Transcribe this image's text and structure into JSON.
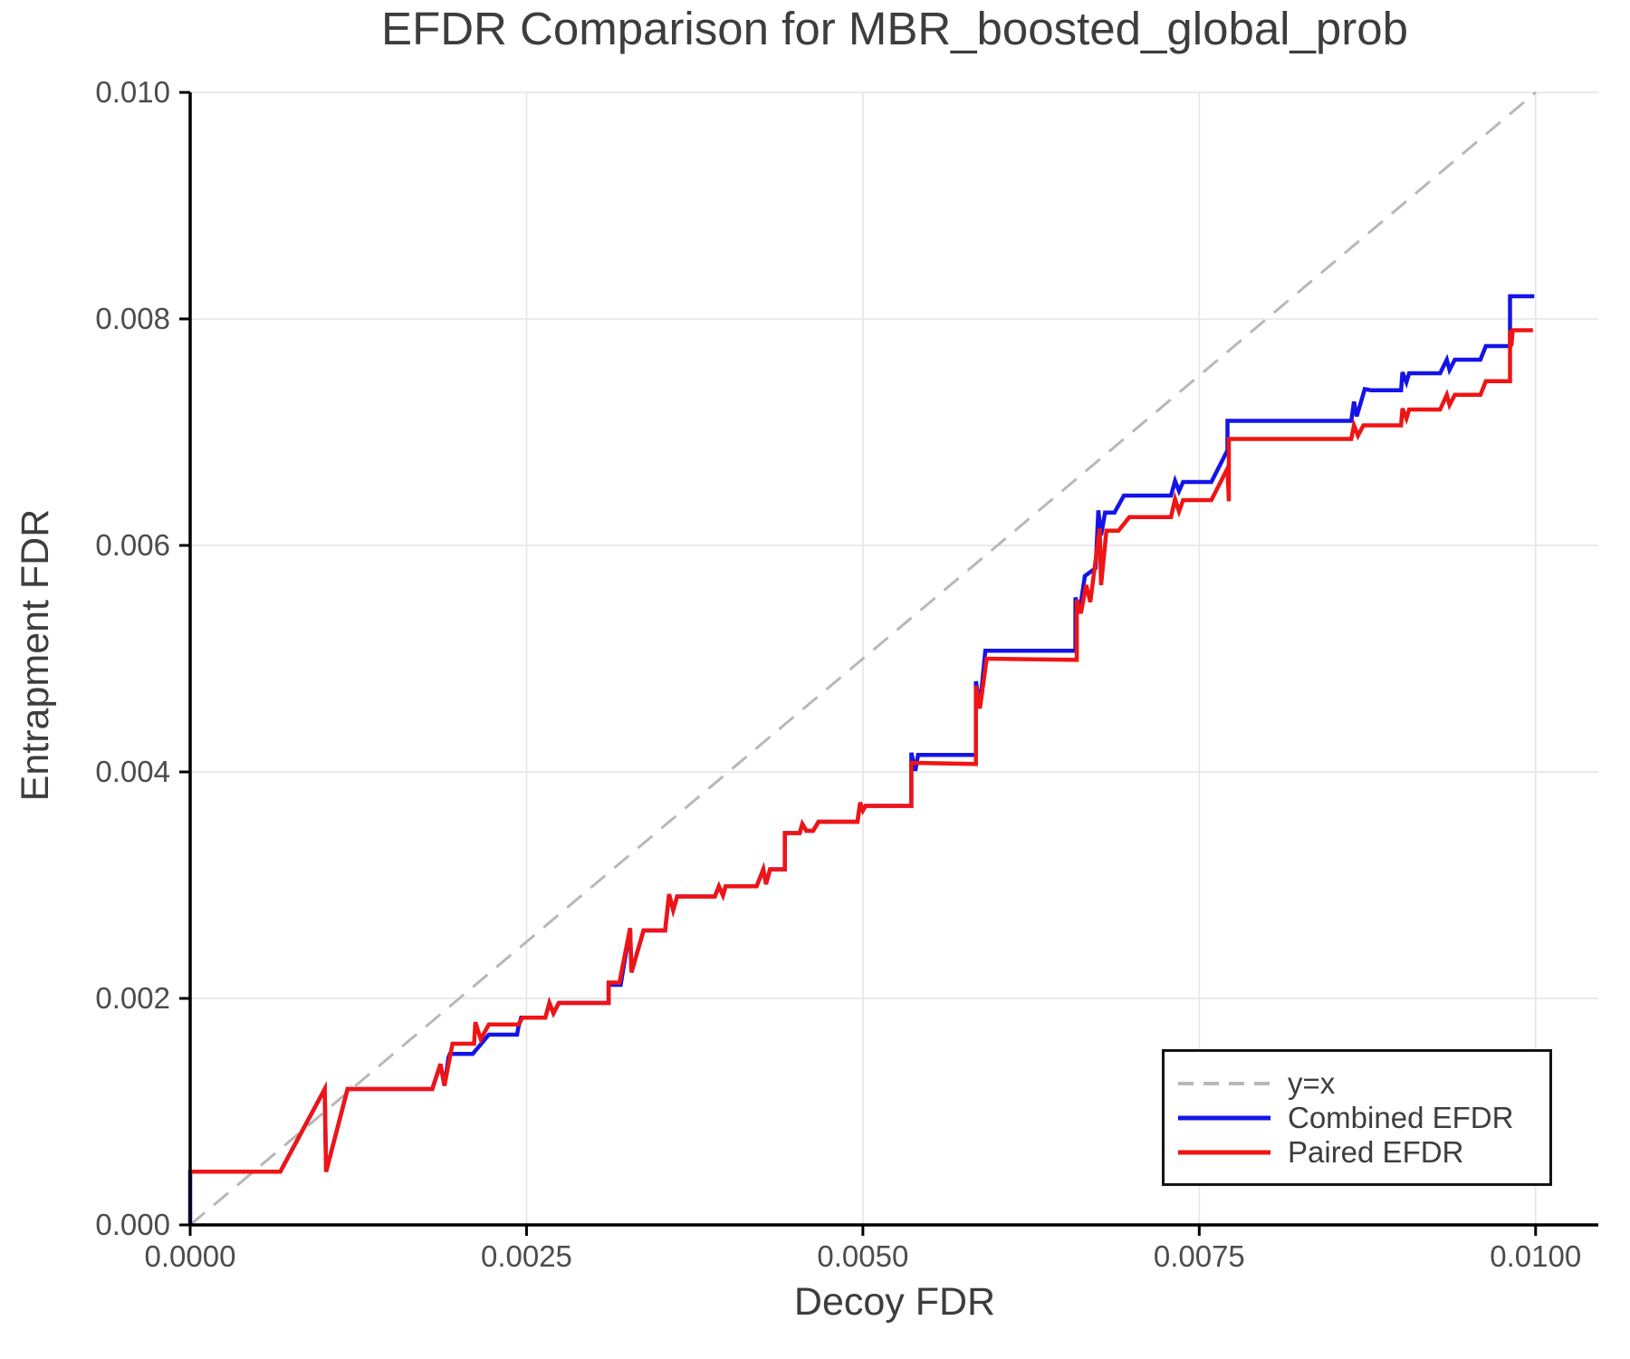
{
  "title": "EFDR Comparison for MBR_boosted_global_prob",
  "legend": {
    "items": [
      {
        "label": "y=x",
        "style": "dashed",
        "color": "#b8b8b8"
      },
      {
        "label": "Combined EFDR",
        "style": "solid",
        "color": "#1414e8"
      },
      {
        "label": "Paired EFDR",
        "style": "solid",
        "color": "#f01414"
      }
    ]
  },
  "chart_data": {
    "type": "line",
    "title": "EFDR Comparison for MBR_boosted_global_prob",
    "xlabel": "Decoy FDR",
    "ylabel": "Entrapment FDR",
    "xlim": [
      0,
      0.010466
    ],
    "ylim": [
      0,
      0.01
    ],
    "grid": true,
    "legend_position": "lower right",
    "background": "#ffffff",
    "grid_color": "#e7e7e7",
    "spine_color": "#000000",
    "x_ticks": {
      "values": [
        0.0,
        0.0025,
        0.005,
        0.0075,
        0.01
      ],
      "labels": [
        "0.0000",
        "0.0025",
        "0.0050",
        "0.0075",
        "0.0100"
      ]
    },
    "y_ticks": {
      "values": [
        0.0,
        0.002,
        0.004,
        0.006,
        0.008,
        0.01
      ],
      "labels": [
        "0.000",
        "0.002",
        "0.004",
        "0.006",
        "0.008",
        "0.010"
      ]
    },
    "series": [
      {
        "name": "y=x",
        "style": "dashed",
        "color": "#b8b8b8",
        "width": 3,
        "points": [
          [
            0,
            0
          ],
          [
            0.01,
            0.01
          ]
        ]
      },
      {
        "name": "Combined EFDR",
        "style": "solid",
        "color": "#1414e8",
        "width": 4.5,
        "points": [
          [
            0.0,
            0.0
          ],
          [
            0.0,
            0.00047
          ],
          [
            0.00067,
            0.00047
          ],
          [
            0.001,
            0.0012
          ],
          [
            0.00101,
            0.00047
          ],
          [
            0.00117,
            0.0012
          ],
          [
            0.0018,
            0.0012
          ],
          [
            0.00186,
            0.00142
          ],
          [
            0.00189,
            0.00123
          ],
          [
            0.00192,
            0.00148
          ],
          [
            0.00193,
            0.00151
          ],
          [
            0.0021,
            0.00151
          ],
          [
            0.00222,
            0.00168
          ],
          [
            0.00243,
            0.00168
          ],
          [
            0.00244,
            0.00175
          ],
          [
            0.00246,
            0.00183
          ],
          [
            0.00264,
            0.00183
          ],
          [
            0.00267,
            0.00196
          ],
          [
            0.0027,
            0.00187
          ],
          [
            0.00274,
            0.00196
          ],
          [
            0.00311,
            0.00196
          ],
          [
            0.00311,
            0.00212
          ],
          [
            0.0032,
            0.00212
          ],
          [
            0.00327,
            0.00262
          ],
          [
            0.00328,
            0.00223
          ],
          [
            0.00337,
            0.0026
          ],
          [
            0.00353,
            0.0026
          ],
          [
            0.00356,
            0.00292
          ],
          [
            0.00359,
            0.00278
          ],
          [
            0.00362,
            0.0029
          ],
          [
            0.0039,
            0.0029
          ],
          [
            0.00393,
            0.00299
          ],
          [
            0.00396,
            0.00291
          ],
          [
            0.00398,
            0.00299
          ],
          [
            0.00421,
            0.00299
          ],
          [
            0.00426,
            0.00314
          ],
          [
            0.00428,
            0.00301
          ],
          [
            0.00431,
            0.00314
          ],
          [
            0.00442,
            0.00314
          ],
          [
            0.00442,
            0.00346
          ],
          [
            0.00453,
            0.00346
          ],
          [
            0.00455,
            0.00354
          ],
          [
            0.00458,
            0.00348
          ],
          [
            0.00463,
            0.00348
          ],
          [
            0.00467,
            0.00356
          ],
          [
            0.00496,
            0.00356
          ],
          [
            0.00498,
            0.00373
          ],
          [
            0.005,
            0.00366
          ],
          [
            0.00502,
            0.0037
          ],
          [
            0.00536,
            0.0037
          ],
          [
            0.00536,
            0.00417
          ],
          [
            0.00539,
            0.00401
          ],
          [
            0.00541,
            0.00415
          ],
          [
            0.00584,
            0.00415
          ],
          [
            0.00584,
            0.0048
          ],
          [
            0.00587,
            0.00458
          ],
          [
            0.00591,
            0.00507
          ],
          [
            0.00658,
            0.00507
          ],
          [
            0.00658,
            0.00554
          ],
          [
            0.00661,
            0.00541
          ],
          [
            0.00665,
            0.00573
          ],
          [
            0.00673,
            0.0058
          ],
          [
            0.00675,
            0.00631
          ],
          [
            0.00677,
            0.00609
          ],
          [
            0.0068,
            0.00629
          ],
          [
            0.00687,
            0.00629
          ],
          [
            0.00694,
            0.00644
          ],
          [
            0.00729,
            0.00644
          ],
          [
            0.00732,
            0.00657
          ],
          [
            0.00735,
            0.00648
          ],
          [
            0.00738,
            0.00656
          ],
          [
            0.00759,
            0.00656
          ],
          [
            0.00771,
            0.00684
          ],
          [
            0.00771,
            0.0071
          ],
          [
            0.00863,
            0.0071
          ],
          [
            0.00865,
            0.00727
          ],
          [
            0.00867,
            0.00714
          ],
          [
            0.00873,
            0.00738
          ],
          [
            0.00878,
            0.00737
          ],
          [
            0.009,
            0.00737
          ],
          [
            0.00901,
            0.00753
          ],
          [
            0.00904,
            0.00744
          ],
          [
            0.00906,
            0.00752
          ],
          [
            0.00929,
            0.00752
          ],
          [
            0.00934,
            0.00764
          ],
          [
            0.00936,
            0.00755
          ],
          [
            0.0094,
            0.00764
          ],
          [
            0.00959,
            0.00764
          ],
          [
            0.00963,
            0.00776
          ],
          [
            0.00977,
            0.00776
          ],
          [
            0.00981,
            0.00776
          ],
          [
            0.00981,
            0.0082
          ],
          [
            0.00999,
            0.0082
          ]
        ]
      },
      {
        "name": "Paired EFDR",
        "style": "solid",
        "color": "#f01414",
        "width": 4.5,
        "points": [
          [
            0.0,
            0.00047
          ],
          [
            0.00067,
            0.00047
          ],
          [
            0.001,
            0.0012
          ],
          [
            0.00101,
            0.00047
          ],
          [
            0.00117,
            0.0012
          ],
          [
            0.0018,
            0.0012
          ],
          [
            0.00186,
            0.00142
          ],
          [
            0.00189,
            0.00123
          ],
          [
            0.00195,
            0.0016
          ],
          [
            0.00211,
            0.0016
          ],
          [
            0.00212,
            0.00179
          ],
          [
            0.00216,
            0.00164
          ],
          [
            0.00222,
            0.00177
          ],
          [
            0.00244,
            0.00177
          ],
          [
            0.00247,
            0.00183
          ],
          [
            0.00264,
            0.00183
          ],
          [
            0.00267,
            0.00196
          ],
          [
            0.0027,
            0.00187
          ],
          [
            0.00274,
            0.00196
          ],
          [
            0.00311,
            0.00196
          ],
          [
            0.00311,
            0.00214
          ],
          [
            0.00319,
            0.00214
          ],
          [
            0.00327,
            0.00262
          ],
          [
            0.00328,
            0.00223
          ],
          [
            0.00337,
            0.0026
          ],
          [
            0.00353,
            0.0026
          ],
          [
            0.00356,
            0.00292
          ],
          [
            0.00359,
            0.00278
          ],
          [
            0.00362,
            0.0029
          ],
          [
            0.0039,
            0.0029
          ],
          [
            0.00393,
            0.00299
          ],
          [
            0.00396,
            0.00291
          ],
          [
            0.00398,
            0.00299
          ],
          [
            0.00421,
            0.00299
          ],
          [
            0.00426,
            0.00314
          ],
          [
            0.00428,
            0.00301
          ],
          [
            0.00431,
            0.00314
          ],
          [
            0.00442,
            0.00314
          ],
          [
            0.00442,
            0.00346
          ],
          [
            0.00453,
            0.00346
          ],
          [
            0.00455,
            0.00354
          ],
          [
            0.00458,
            0.00348
          ],
          [
            0.00463,
            0.00348
          ],
          [
            0.00467,
            0.00356
          ],
          [
            0.00496,
            0.00356
          ],
          [
            0.00498,
            0.00373
          ],
          [
            0.005,
            0.00366
          ],
          [
            0.00502,
            0.0037
          ],
          [
            0.00536,
            0.0037
          ],
          [
            0.00536,
            0.00408
          ],
          [
            0.00584,
            0.00407
          ],
          [
            0.00584,
            0.00476
          ],
          [
            0.00587,
            0.00456
          ],
          [
            0.00592,
            0.005
          ],
          [
            0.00659,
            0.00499
          ],
          [
            0.00659,
            0.00552
          ],
          [
            0.00662,
            0.0054
          ],
          [
            0.00666,
            0.00565
          ],
          [
            0.00669,
            0.0055
          ],
          [
            0.00676,
            0.00615
          ],
          [
            0.00677,
            0.00565
          ],
          [
            0.00681,
            0.00613
          ],
          [
            0.0069,
            0.00613
          ],
          [
            0.00698,
            0.00625
          ],
          [
            0.00729,
            0.00625
          ],
          [
            0.00732,
            0.00641
          ],
          [
            0.00735,
            0.0063
          ],
          [
            0.00738,
            0.0064
          ],
          [
            0.00759,
            0.0064
          ],
          [
            0.00771,
            0.00668
          ],
          [
            0.00772,
            0.00639
          ],
          [
            0.00772,
            0.00694
          ],
          [
            0.00863,
            0.00694
          ],
          [
            0.00865,
            0.00706
          ],
          [
            0.00868,
            0.00697
          ],
          [
            0.00872,
            0.00706
          ],
          [
            0.009,
            0.00706
          ],
          [
            0.00901,
            0.00721
          ],
          [
            0.00904,
            0.00712
          ],
          [
            0.00906,
            0.0072
          ],
          [
            0.00929,
            0.0072
          ],
          [
            0.00934,
            0.00733
          ],
          [
            0.00936,
            0.00724
          ],
          [
            0.0094,
            0.00733
          ],
          [
            0.00959,
            0.00733
          ],
          [
            0.00963,
            0.00745
          ],
          [
            0.00977,
            0.00745
          ],
          [
            0.00981,
            0.00745
          ],
          [
            0.00981,
            0.0079
          ],
          [
            0.00982,
            0.00776
          ],
          [
            0.00983,
            0.0079
          ],
          [
            0.00998,
            0.0079
          ]
        ]
      }
    ]
  }
}
